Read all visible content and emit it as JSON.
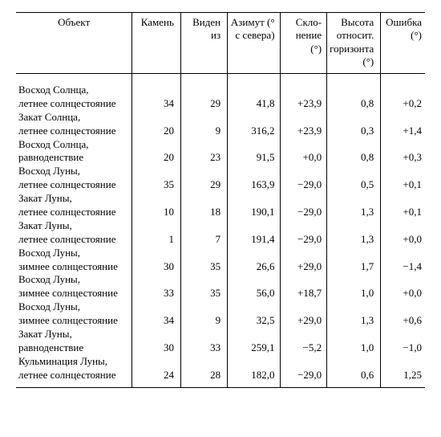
{
  "headers": {
    "object": "Объект",
    "stone": "Камень",
    "seen_from": "Виден из",
    "azimuth": "Азимут (° с се­вера)",
    "declination": "Скло­нение (°)",
    "altitude": "Высота отно­сит. го­ризон­та (°)",
    "error": "Ошиб­ка (°)"
  },
  "rows": [
    {
      "object_l1": "Восход Солнца,",
      "object_l2": "летнее солнцестояние",
      "stone": "34",
      "seen": "29",
      "azm": "41,8",
      "decl": "+23,9",
      "alt": "0,8",
      "err": "+0,2"
    },
    {
      "object_l1": "Закат Солнца,",
      "object_l2": "летнее солнцестояние",
      "stone": "20",
      "seen": "9",
      "azm": "316,2",
      "decl": "+23,9",
      "alt": "0,3",
      "err": "+1,4"
    },
    {
      "object_l1": "Восход Солнца,",
      "object_l2": "равноденствие",
      "stone": "20",
      "seen": "23",
      "azm": "91,5",
      "decl": "+0,0",
      "alt": "0,8",
      "err": "+0,3"
    },
    {
      "object_l1": "Восход Луны,",
      "object_l2": "летнее солнцестояние",
      "stone": "35",
      "seen": "29",
      "azm": "163,9",
      "decl": "−29,0",
      "alt": "0,5",
      "err": "+0,1"
    },
    {
      "object_l1": "Закат Луны,",
      "object_l2": "летнее солнцестояние",
      "stone": "10",
      "seen": "18",
      "azm": "190,1",
      "decl": "−29,0",
      "alt": "1,3",
      "err": "+0,1"
    },
    {
      "object_l1": "Закат Луны,",
      "object_l2": "летнее солнцестояние",
      "stone": "1",
      "seen": "7",
      "azm": "191,4",
      "decl": "−29,0",
      "alt": "1,3",
      "err": "+0,0"
    },
    {
      "object_l1": "Восход Луны,",
      "object_l2": "зимнее солнцестояние",
      "stone": "30",
      "seen": "35",
      "azm": "26,6",
      "decl": "+29,0",
      "alt": "1,7",
      "err": "−1,4"
    },
    {
      "object_l1": "Восход Луны,",
      "object_l2": "зимнее солнцестояние",
      "stone": "33",
      "seen": "35",
      "azm": "56,0",
      "decl": "+18,7",
      "alt": "1,0",
      "err": "+0,0"
    },
    {
      "object_l1": "Восход Луны,",
      "object_l2": "зимнее солнцестояние",
      "stone": "34",
      "seen": "9",
      "azm": "32,5",
      "decl": "+29,0",
      "alt": "1,3",
      "err": "+0,6"
    },
    {
      "object_l1": "Закат Луны,",
      "object_l2": "равноденствие",
      "stone": "30",
      "seen": "33",
      "azm": "259,1",
      "decl": "−5,2",
      "alt": "1,0",
      "err": "−1,0"
    },
    {
      "object_l1": "Кульминация Луны,",
      "object_l2": "летнее солнцестояние",
      "stone": "24",
      "seen": "28",
      "azm": "182,0",
      "decl": "−29,0",
      "alt": "0,6",
      "err": "1,25"
    }
  ]
}
